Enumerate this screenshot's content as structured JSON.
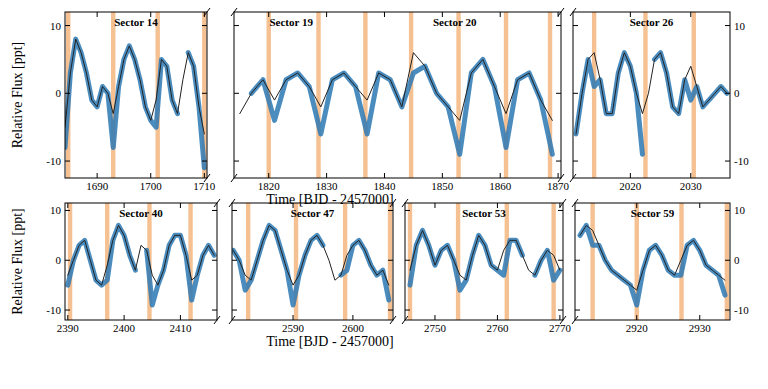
{
  "chart_data": [
    {
      "type": "line",
      "title": "Sector 14",
      "y_label": "Relative Flux [ppt]",
      "x": [
        1684,
        1685,
        1686,
        1687,
        1688,
        1689,
        1690,
        1691,
        1692,
        1693,
        1694,
        1695,
        1696,
        1697,
        1698,
        1699,
        1700,
        1701,
        1702,
        1703,
        1704,
        1705,
        1706,
        1707,
        1708,
        1709,
        1710
      ],
      "series": [
        {
          "color": "#2b78b4",
          "line_style": "thick",
          "values": [
            -8,
            3,
            8,
            6,
            3,
            -1,
            -2,
            1,
            0,
            -8,
            1,
            5,
            7,
            5,
            2,
            -2,
            -4,
            -5,
            5,
            4,
            -1,
            -3,
            null,
            6,
            4,
            -2,
            -11
          ]
        },
        {
          "color": "#222222",
          "line_style": "solid",
          "values": [
            -5,
            3,
            8,
            6,
            3,
            -1,
            -2,
            1,
            0,
            -3,
            1,
            5,
            7,
            5,
            2,
            -2,
            -4,
            -1,
            5,
            4,
            -1,
            -3,
            2,
            6,
            4,
            -2,
            -6
          ]
        }
      ],
      "transits": [
        1684.6,
        1693.0,
        1701.3,
        1710.0
      ],
      "xlim": [
        1684,
        1710.5
      ],
      "xticks": [
        1690,
        1700,
        1710
      ],
      "ylim": [
        -12.5,
        12
      ],
      "yticks": [
        -10,
        0,
        10
      ]
    },
    {
      "type": "line",
      "title": [
        "Sector 19",
        "Sector 20"
      ],
      "x_label": "Time [BJD - 2457000]",
      "x": [
        1815,
        1817,
        1819,
        1821,
        1823,
        1825,
        1827,
        1829,
        1831,
        1833,
        1835,
        1837,
        1839,
        1841,
        1843,
        1845,
        1847,
        1849,
        1851,
        1853,
        1855,
        1857,
        1859,
        1861,
        1863,
        1865,
        1867,
        1869
      ],
      "series": [
        {
          "color": "#2b78b4",
          "line_style": "thick",
          "values": [
            null,
            0,
            2,
            -4,
            2,
            3,
            1,
            -6,
            2,
            3,
            1,
            -6,
            3,
            2,
            -2,
            3,
            4,
            0,
            -2,
            -9,
            3,
            5,
            1,
            -8,
            2,
            3,
            -1,
            -9
          ]
        },
        {
          "color": "#222222",
          "line_style": "solid",
          "values": [
            -3,
            0,
            2,
            -1,
            2,
            3,
            1,
            -2,
            2,
            3,
            1,
            -1,
            3,
            2,
            -2,
            6,
            4,
            0,
            -2,
            -4,
            3,
            5,
            1,
            -3,
            2,
            3,
            -1,
            -4
          ]
        }
      ],
      "transits": [
        1820.0,
        1828.6,
        1836.7,
        1844.6,
        1852.8,
        1861.0,
        1868.6
      ],
      "xlim": [
        1814,
        1870.5
      ],
      "xticks": [
        1820,
        1830,
        1840,
        1850,
        1860,
        1870
      ],
      "ylim": [
        -12.5,
        12
      ],
      "yticks": [
        -10,
        0,
        10
      ],
      "tick_labels": "x"
    },
    {
      "type": "line",
      "title": "Sector 26",
      "x": [
        2011,
        2012,
        2013,
        2014,
        2015,
        2016,
        2017,
        2018,
        2019,
        2020,
        2021,
        2022,
        2023,
        2024,
        2025,
        2026,
        2027,
        2028,
        2029,
        2030,
        2031,
        2032,
        2033,
        2034,
        2035,
        2036
      ],
      "series": [
        {
          "color": "#2b78b4",
          "line_style": "thick",
          "values": [
            -6,
            0,
            5,
            1,
            2,
            -3,
            -3,
            3,
            6,
            4,
            0,
            -9,
            null,
            5,
            6,
            3,
            -2,
            -3,
            2,
            -1,
            1,
            -2,
            -1,
            0,
            1,
            0
          ]
        },
        {
          "color": "#222222",
          "line_style": "solid",
          "values": [
            -6,
            0,
            5,
            6,
            2,
            -3,
            -3,
            3,
            6,
            4,
            0,
            -3,
            0,
            5,
            6,
            3,
            -2,
            -3,
            2,
            4,
            1,
            -2,
            -1,
            0,
            1,
            0
          ]
        }
      ],
      "transits": [
        2014.0,
        2022.5,
        2030.5
      ],
      "xlim": [
        2010.5,
        2036.5
      ],
      "xticks": [
        2020,
        2030
      ],
      "ylim": [
        -12.5,
        12
      ],
      "yticks": [
        -10,
        0,
        10
      ]
    },
    {
      "type": "line",
      "title": "Sector 40",
      "y_label": "Relative Flux [ppt]",
      "x": [
        2390,
        2391,
        2392,
        2393,
        2394,
        2395,
        2396,
        2397,
        2398,
        2399,
        2400,
        2401,
        2402,
        2403,
        2404,
        2405,
        2406,
        2407,
        2408,
        2409,
        2410,
        2411,
        2412,
        2413,
        2414,
        2415,
        2416
      ],
      "series": [
        {
          "color": "#2b78b4",
          "line_style": "thick",
          "values": [
            -5,
            0,
            3,
            4,
            0,
            -4,
            -5,
            -4,
            4,
            7,
            5,
            1,
            -2,
            null,
            2,
            -9,
            -5,
            -2,
            3,
            5,
            5,
            1,
            -8,
            -3,
            1,
            3,
            1
          ]
        },
        {
          "color": "#222222",
          "line_style": "solid",
          "values": [
            -3,
            0,
            3,
            4,
            0,
            -4,
            -5,
            -1,
            4,
            7,
            5,
            1,
            -2,
            3,
            2,
            -3,
            -5,
            -2,
            3,
            5,
            5,
            1,
            -4,
            -3,
            1,
            3,
            1
          ]
        }
      ],
      "transits": [
        2390.4,
        2397.0,
        2404.5,
        2411.8
      ],
      "xlim": [
        2389.5,
        2416.5
      ],
      "xticks": [
        2390,
        2400,
        2410
      ],
      "ylim": [
        -12,
        11.5
      ],
      "yticks": [
        -10,
        0,
        10
      ]
    },
    {
      "type": "line",
      "title": "Sector 47",
      "x_label": "Time [BJD - 2457000]",
      "x": [
        2580,
        2581,
        2582,
        2583,
        2584,
        2585,
        2586,
        2587,
        2588,
        2589,
        2590,
        2591,
        2592,
        2593,
        2594,
        2595,
        2596,
        2597,
        2598,
        2599,
        2600,
        2601,
        2602,
        2603,
        2604,
        2605,
        2606
      ],
      "series": [
        {
          "color": "#2b78b4",
          "line_style": "thick",
          "values": [
            2,
            0,
            -6,
            -4,
            0,
            4,
            7,
            6,
            2,
            -2,
            -9,
            -3,
            1,
            4,
            5,
            3,
            null,
            null,
            -3,
            -2,
            3,
            4,
            2,
            -1,
            -3,
            -2,
            -8
          ]
        },
        {
          "color": "#222222",
          "line_style": "solid",
          "values": [
            2,
            0,
            -3,
            -4,
            0,
            4,
            7,
            6,
            2,
            -2,
            -5,
            -3,
            1,
            4,
            5,
            3,
            0,
            -4,
            -3,
            1,
            3,
            4,
            2,
            -1,
            -3,
            -2,
            -5
          ]
        }
      ],
      "transits": [
        2582.5,
        2590.5,
        2598.7,
        2606.2
      ],
      "xlim": [
        2579.8,
        2606.7
      ],
      "xticks": [
        2590,
        2600
      ],
      "ylim": [
        -12,
        11.5
      ],
      "yticks": [
        -10,
        0,
        10
      ],
      "tick_labels": "x"
    },
    {
      "type": "line",
      "title": "Sector 53",
      "x": [
        2746,
        2747,
        2748,
        2749,
        2750,
        2751,
        2752,
        2753,
        2754,
        2755,
        2756,
        2757,
        2758,
        2759,
        2760,
        2761,
        2762,
        2763,
        2764,
        2765,
        2766,
        2767,
        2768,
        2769,
        2770
      ],
      "series": [
        {
          "color": "#2b78b4",
          "line_style": "thick",
          "values": [
            -5,
            3,
            6,
            3,
            -1,
            2,
            3,
            0,
            -6,
            -4,
            1,
            5,
            3,
            -1,
            -2,
            -3,
            4,
            4,
            1,
            null,
            -3,
            0,
            2,
            -4,
            -2
          ]
        },
        {
          "color": "#222222",
          "line_style": "solid",
          "values": [
            -2,
            3,
            6,
            3,
            -1,
            2,
            3,
            0,
            -3,
            -4,
            1,
            5,
            3,
            -1,
            -2,
            2,
            4,
            4,
            1,
            -2,
            -3,
            0,
            2,
            1,
            -2
          ]
        }
      ],
      "transits": [
        2746.0,
        2753.7,
        2761.5,
        2769.0
      ],
      "xlim": [
        2745.2,
        2770.5
      ],
      "xticks": [
        2750,
        2760,
        2770
      ],
      "ylim": [
        -12,
        11.5
      ],
      "yticks": [
        -10,
        0,
        10
      ],
      "tick_labels": "x"
    },
    {
      "type": "line",
      "title": "Sector 59",
      "x": [
        2911,
        2912,
        2913,
        2914,
        2915,
        2916,
        2917,
        2918,
        2919,
        2920,
        2921,
        2922,
        2923,
        2924,
        2925,
        2926,
        2927,
        2928,
        2929,
        2930,
        2931,
        2932,
        2933,
        2934
      ],
      "series": [
        {
          "color": "#2b78b4",
          "line_style": "thick",
          "values": [
            5,
            7,
            3,
            3,
            0,
            -2,
            -3,
            -4,
            -5,
            -9,
            -2,
            2,
            3,
            1,
            -2,
            -3,
            -3,
            3,
            4,
            2,
            -1,
            -2,
            -3,
            -7
          ]
        },
        {
          "color": "#222222",
          "line_style": "solid",
          "values": [
            5,
            7,
            6,
            3,
            0,
            -2,
            -3,
            -4,
            -5,
            -6,
            -2,
            2,
            3,
            1,
            -2,
            -3,
            0,
            3,
            4,
            2,
            -1,
            -2,
            -3,
            -4
          ]
        }
      ],
      "transits": [
        2913.0,
        2920.0,
        2927.1,
        2934.3
      ],
      "xlim": [
        2910.2,
        2934.8
      ],
      "xticks": [
        2920,
        2930
      ],
      "ylim": [
        -12,
        11.5
      ],
      "yticks": [
        -10,
        0,
        10
      ]
    }
  ]
}
